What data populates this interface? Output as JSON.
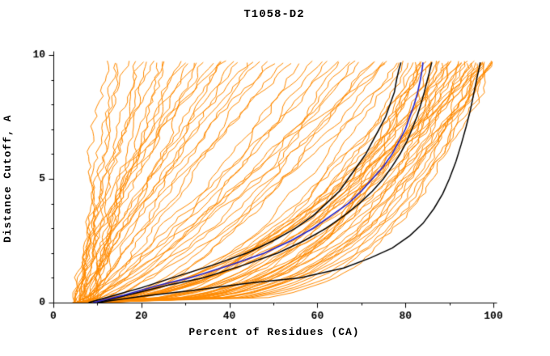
{
  "chart_data": {
    "type": "line",
    "title": "T1058-D2",
    "xlabel": "Percent of Residues (CA)",
    "ylabel": "Distance Cutoff, A",
    "xlim": [
      0,
      100
    ],
    "ylim": [
      0,
      10
    ],
    "xticks": {
      "major": [
        0,
        20,
        40,
        60,
        80,
        100
      ],
      "minor_step": 10
    },
    "yticks": {
      "major": [
        0,
        5,
        10
      ],
      "minor_step": 1
    },
    "grid": false,
    "legend": "none",
    "colors": {
      "models": "#ff8a00",
      "reference": "#000000",
      "highlight": "#2222cc",
      "axis": "#000000",
      "background": "#ffffff"
    },
    "y_top_end": 9.7,
    "model_curve_params_format": "[start_x_percent_at_y0, end_x_percent_at_ytop, shape_exponent]",
    "model_curves": [
      [
        5,
        12,
        1.2
      ],
      [
        6,
        14,
        0.9
      ],
      [
        7,
        15,
        1.5
      ],
      [
        5,
        17,
        1.1
      ],
      [
        8,
        18,
        0.8
      ],
      [
        6,
        20,
        1.6
      ],
      [
        9,
        21,
        1.0
      ],
      [
        5,
        22,
        1.3
      ],
      [
        7,
        24,
        0.9
      ],
      [
        6,
        25,
        1.8
      ],
      [
        8,
        26,
        1.1
      ],
      [
        5,
        28,
        0.8
      ],
      [
        9,
        29,
        1.4
      ],
      [
        6,
        30,
        1.0
      ],
      [
        7,
        32,
        1.7
      ],
      [
        8,
        33,
        0.9
      ],
      [
        5,
        34,
        1.2
      ],
      [
        6,
        36,
        1.5
      ],
      [
        9,
        37,
        0.8
      ],
      [
        7,
        38,
        1.1
      ],
      [
        5,
        40,
        1.9
      ],
      [
        8,
        41,
        1.0
      ],
      [
        6,
        42,
        1.3
      ],
      [
        7,
        44,
        0.9
      ],
      [
        9,
        45,
        1.6
      ],
      [
        5,
        46,
        1.1
      ],
      [
        6,
        48,
        0.8
      ],
      [
        8,
        50,
        1.4
      ],
      [
        7,
        52,
        1.0
      ],
      [
        6,
        54,
        1.2
      ],
      [
        6,
        56,
        0.7
      ],
      [
        8,
        58,
        0.9
      ],
      [
        5,
        60,
        0.6
      ],
      [
        7,
        62,
        0.8
      ],
      [
        9,
        64,
        0.5
      ],
      [
        6,
        65,
        0.9
      ],
      [
        8,
        66,
        0.7
      ],
      [
        5,
        68,
        0.6
      ],
      [
        7,
        70,
        0.8
      ],
      [
        6,
        71,
        0.5
      ],
      [
        9,
        72,
        0.7
      ],
      [
        5,
        74,
        0.9
      ],
      [
        8,
        75,
        0.6
      ],
      [
        6,
        76,
        0.8
      ],
      [
        7,
        78,
        0.5
      ],
      [
        8,
        79,
        0.7
      ],
      [
        7,
        80,
        0.45
      ],
      [
        5,
        82,
        0.3
      ],
      [
        9,
        83,
        0.5
      ],
      [
        6,
        84,
        0.25
      ],
      [
        8,
        85,
        0.4
      ],
      [
        5,
        86,
        0.55
      ],
      [
        7,
        87,
        0.3
      ],
      [
        6,
        88,
        0.45
      ],
      [
        9,
        89,
        0.25
      ],
      [
        5,
        90,
        0.5
      ],
      [
        8,
        91,
        0.35
      ],
      [
        6,
        92,
        0.55
      ],
      [
        7,
        93,
        0.3
      ],
      [
        5,
        94,
        0.45
      ],
      [
        9,
        95,
        0.25
      ],
      [
        6,
        96,
        0.4
      ],
      [
        8,
        97,
        0.3
      ],
      [
        5,
        98,
        0.5
      ],
      [
        7,
        99,
        0.35
      ],
      [
        6,
        100,
        0.28
      ],
      [
        8,
        100,
        0.45
      ],
      [
        5,
        99,
        0.22
      ],
      [
        7,
        98,
        0.38
      ],
      [
        6,
        97,
        0.5
      ],
      [
        9,
        96,
        0.3
      ],
      [
        5,
        95,
        0.42
      ],
      [
        8,
        94,
        0.26
      ],
      [
        6,
        93,
        0.48
      ],
      [
        7,
        92,
        0.33
      ],
      [
        5,
        91,
        0.24
      ],
      [
        9,
        90,
        0.4
      ],
      [
        6,
        89,
        0.3
      ],
      [
        8,
        88,
        0.5
      ],
      [
        5,
        87,
        0.36
      ],
      [
        7,
        86,
        0.27
      ],
      [
        6,
        85,
        0.44
      ],
      [
        9,
        84,
        0.32
      ],
      [
        5,
        83,
        0.26
      ],
      [
        8,
        82,
        0.42
      ],
      [
        7,
        96,
        0.2
      ],
      [
        6,
        98,
        0.6
      ],
      [
        5,
        100,
        0.33
      ],
      [
        9,
        99,
        0.26
      ],
      [
        8,
        95,
        0.55
      ],
      [
        7,
        94,
        0.22
      ]
    ],
    "reference_curves": [
      {
        "name": "black-lower",
        "points": [
          [
            8,
            0
          ],
          [
            14,
            0.3
          ],
          [
            20,
            0.6
          ],
          [
            27,
            1
          ],
          [
            36,
            1.5
          ],
          [
            44,
            2
          ],
          [
            50,
            2.5
          ],
          [
            55,
            3
          ],
          [
            59,
            3.5
          ],
          [
            62,
            4
          ],
          [
            65,
            4.5
          ],
          [
            67,
            5
          ],
          [
            69,
            5.5
          ],
          [
            71,
            6
          ],
          [
            72.5,
            6.5
          ],
          [
            74,
            7
          ],
          [
            75.5,
            7.5
          ],
          [
            76.5,
            8
          ],
          [
            77.5,
            8.5
          ],
          [
            78,
            9
          ],
          [
            78.5,
            9.4
          ],
          [
            79,
            9.7
          ]
        ]
      },
      {
        "name": "black-middle",
        "points": [
          [
            10,
            0
          ],
          [
            18,
            0.35
          ],
          [
            26,
            0.7
          ],
          [
            34,
            1
          ],
          [
            43,
            1.5
          ],
          [
            51,
            2
          ],
          [
            57,
            2.5
          ],
          [
            62,
            3
          ],
          [
            66,
            3.5
          ],
          [
            69.5,
            4
          ],
          [
            72.5,
            4.5
          ],
          [
            75,
            5
          ],
          [
            77,
            5.5
          ],
          [
            78.8,
            6
          ],
          [
            80.3,
            6.5
          ],
          [
            81.5,
            7
          ],
          [
            82.6,
            7.5
          ],
          [
            83.5,
            8
          ],
          [
            84.3,
            8.5
          ],
          [
            85,
            9
          ],
          [
            85.6,
            9.4
          ],
          [
            86,
            9.7
          ]
        ]
      },
      {
        "name": "black-upper",
        "points": [
          [
            10,
            0
          ],
          [
            20,
            0.25
          ],
          [
            32,
            0.5
          ],
          [
            45,
            0.8
          ],
          [
            56,
            1
          ],
          [
            66,
            1.4
          ],
          [
            72,
            1.8
          ],
          [
            77,
            2.2
          ],
          [
            81,
            2.7
          ],
          [
            84,
            3.2
          ],
          [
            86.5,
            3.8
          ],
          [
            88.5,
            4.4
          ],
          [
            90,
            5
          ],
          [
            91.5,
            5.7
          ],
          [
            92.7,
            6.4
          ],
          [
            93.8,
            7.1
          ],
          [
            94.8,
            7.8
          ],
          [
            95.6,
            8.5
          ],
          [
            96.3,
            9.1
          ],
          [
            96.8,
            9.5
          ],
          [
            97,
            9.7
          ]
        ]
      }
    ],
    "highlight_curve": {
      "name": "blue-model",
      "points": [
        [
          9,
          0
        ],
        [
          16,
          0.3
        ],
        [
          24,
          0.7
        ],
        [
          31,
          1
        ],
        [
          40,
          1.5
        ],
        [
          48,
          2
        ],
        [
          54,
          2.5
        ],
        [
          59,
          3
        ],
        [
          63,
          3.5
        ],
        [
          67,
          4
        ],
        [
          70,
          4.5
        ],
        [
          72.5,
          5
        ],
        [
          75,
          5.5
        ],
        [
          77,
          6
        ],
        [
          78.5,
          6.5
        ],
        [
          80,
          7
        ],
        [
          81,
          7.5
        ],
        [
          82,
          8
        ],
        [
          82.8,
          8.5
        ],
        [
          83.4,
          9
        ],
        [
          83.8,
          9.4
        ],
        [
          84,
          9.7
        ]
      ]
    }
  }
}
